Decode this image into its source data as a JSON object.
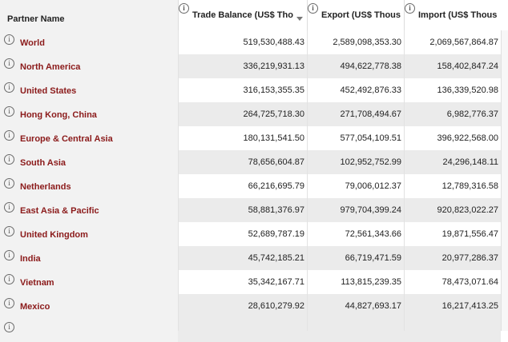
{
  "headers": {
    "partner_name": "Partner Name",
    "trade_balance": "Trade Balance (US$ Tho",
    "export": "Export (US$ Thous",
    "import": "Import (US$ Thous"
  },
  "icons": {
    "info": "info-icon",
    "sort": "sort-descending-icon"
  },
  "colors": {
    "partner_link": "#8b1a1a",
    "alt_row": "#ebebeb",
    "name_column": "#f2f2f2"
  },
  "rows": [
    {
      "name": "World",
      "trade_balance": "519,530,488.43",
      "export": "2,589,098,353.30",
      "import": "2,069,567,864.87"
    },
    {
      "name": "North America",
      "trade_balance": "336,219,931.13",
      "export": "494,622,778.38",
      "import": "158,402,847.24"
    },
    {
      "name": "United States",
      "trade_balance": "316,153,355.35",
      "export": "452,492,876.33",
      "import": "136,339,520.98"
    },
    {
      "name": "Hong Kong, China",
      "trade_balance": "264,725,718.30",
      "export": "271,708,494.67",
      "import": "6,982,776.37"
    },
    {
      "name": "Europe & Central Asia",
      "trade_balance": "180,131,541.50",
      "export": "577,054,109.51",
      "import": "396,922,568.00"
    },
    {
      "name": "South Asia",
      "trade_balance": "78,656,604.87",
      "export": "102,952,752.99",
      "import": "24,296,148.11"
    },
    {
      "name": "Netherlands",
      "trade_balance": "66,216,695.79",
      "export": "79,006,012.37",
      "import": "12,789,316.58"
    },
    {
      "name": "East Asia & Pacific",
      "trade_balance": "58,881,376.97",
      "export": "979,704,399.24",
      "import": "920,823,022.27"
    },
    {
      "name": "United Kingdom",
      "trade_balance": "52,689,787.19",
      "export": "72,561,343.66",
      "import": "19,871,556.47"
    },
    {
      "name": "India",
      "trade_balance": "45,742,185.21",
      "export": "66,719,471.59",
      "import": "20,977,286.37"
    },
    {
      "name": "Vietnam",
      "trade_balance": "35,342,167.71",
      "export": "113,815,239.35",
      "import": "78,473,071.64"
    },
    {
      "name": "Mexico",
      "trade_balance": "28,610,279.92",
      "export": "44,827,693.17",
      "import": "16,217,413.25"
    }
  ]
}
